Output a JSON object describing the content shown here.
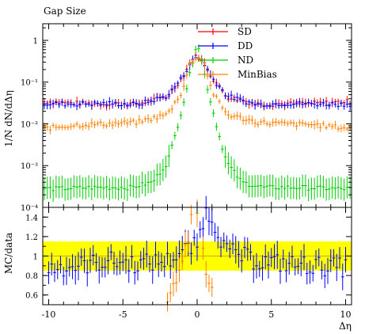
{
  "chart_data": [
    {
      "type": "scatter",
      "panel": "main",
      "title": "Gap Size",
      "ylabel": "1/N dN/dΔη",
      "xlim": [
        -10.4,
        10.4
      ],
      "ylim": [
        0.0001,
        2.5
      ],
      "yscale": "log",
      "ytick_labels": [
        "1",
        "10⁻¹",
        "10⁻²",
        "10⁻³",
        "10⁻⁴"
      ],
      "legend_position": "top-right",
      "series": [
        {
          "name": "SD",
          "color": "#ff0000",
          "x": [
            -10,
            -8,
            -6,
            -4,
            -2,
            -1,
            -0.5,
            0,
            0.5,
            1,
            2,
            4,
            6,
            8,
            10
          ],
          "y": [
            0.034,
            0.031,
            0.03,
            0.03,
            0.045,
            0.13,
            0.28,
            0.44,
            0.28,
            0.13,
            0.045,
            0.03,
            0.03,
            0.031,
            0.034
          ]
        },
        {
          "name": "DD",
          "color": "#0000ff",
          "x": [
            -10,
            -8,
            -6,
            -4,
            -2,
            -1,
            -0.5,
            0,
            0.5,
            1,
            2,
            4,
            6,
            8,
            10
          ],
          "y": [
            0.03,
            0.03,
            0.031,
            0.029,
            0.047,
            0.13,
            0.27,
            0.42,
            0.27,
            0.13,
            0.047,
            0.029,
            0.031,
            0.03,
            0.03
          ]
        },
        {
          "name": "ND",
          "color": "#00cc00",
          "x": [
            -9.5,
            -7,
            -4.5,
            -3,
            -2,
            -1.5,
            -1,
            -0.5,
            0,
            0.5,
            1,
            1.5,
            2,
            3,
            4.5,
            7,
            9.5
          ],
          "y": [
            0.00028,
            0.0003,
            0.0003,
            0.0004,
            0.0012,
            0.005,
            0.025,
            0.15,
            1.0,
            0.15,
            0.025,
            0.005,
            0.0012,
            0.0004,
            0.0003,
            0.0003,
            0.00028
          ]
        },
        {
          "name": "MinBias",
          "color": "#ff8000",
          "x": [
            -10,
            -8,
            -6,
            -4,
            -2,
            -1,
            -0.5,
            0,
            0.5,
            1,
            2,
            4,
            6,
            8,
            10
          ],
          "y": [
            0.008,
            0.0095,
            0.01,
            0.011,
            0.017,
            0.06,
            0.26,
            0.44,
            0.26,
            0.06,
            0.017,
            0.011,
            0.01,
            0.0095,
            0.008
          ]
        }
      ]
    },
    {
      "type": "scatter",
      "panel": "ratio",
      "ylabel": "MC/data",
      "xlabel": "Δη",
      "xlim": [
        -10.4,
        10.4
      ],
      "ylim": [
        0.5,
        1.5
      ],
      "ytick_labels": [
        "0.6",
        "0.8",
        "1",
        "1.2",
        "1.4"
      ],
      "xtick_labels": [
        "-10",
        "-5",
        "0",
        "5",
        "10"
      ],
      "band": {
        "color": "#ffff00",
        "halfwidth": 0.15
      },
      "series": [
        {
          "name": "DD",
          "color": "#0000ff",
          "x": [
            -10,
            -8,
            -6,
            -4,
            -2,
            -1,
            0,
            0.5,
            1,
            2,
            4,
            6,
            8,
            10
          ],
          "y": [
            0.88,
            0.9,
            0.95,
            0.92,
            0.95,
            1.05,
            1.1,
            1.45,
            1.4,
            1.05,
            0.95,
            0.92,
            0.9,
            0.88
          ]
        },
        {
          "name": "MinBias",
          "color": "#ff8000",
          "x": [
            -2,
            -1.5,
            -1,
            -0.5,
            -0.2,
            0.2,
            0.5,
            1
          ],
          "y": [
            0.6,
            0.65,
            0.9,
            1.3,
            1.5,
            1.5,
            0.9,
            0.6
          ]
        }
      ]
    }
  ]
}
